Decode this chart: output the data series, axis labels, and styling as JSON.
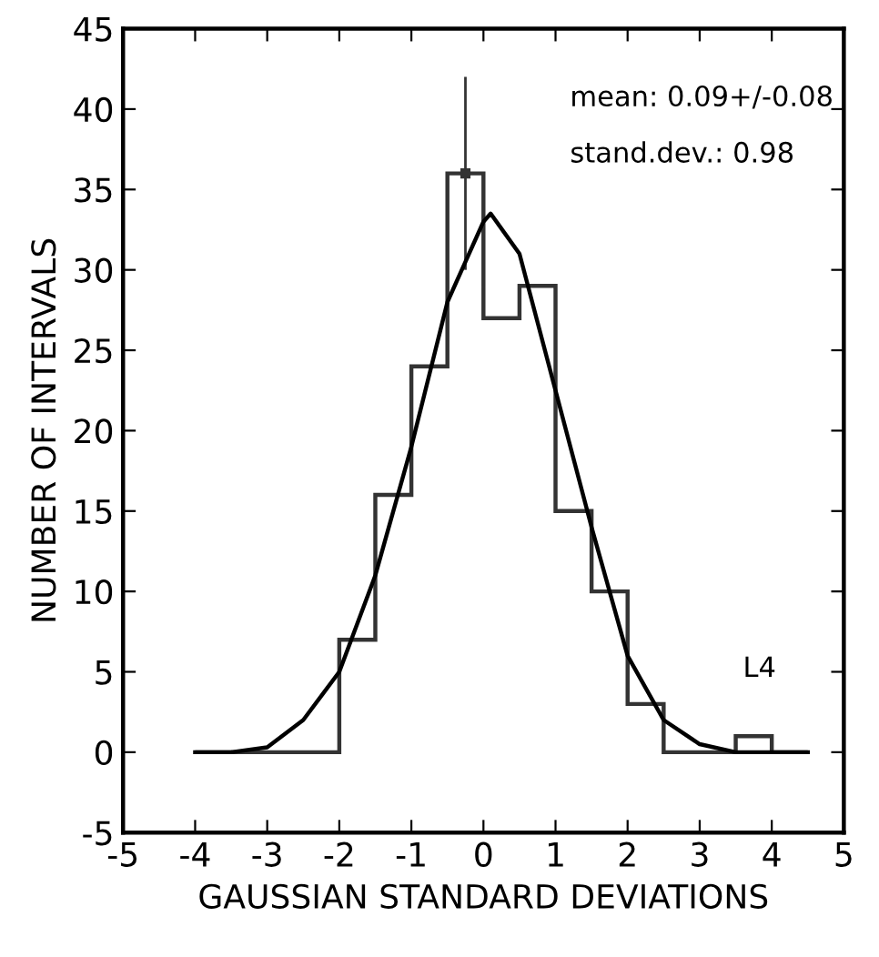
{
  "chart_data": {
    "type": "histogram",
    "xlabel": "GAUSSIAN STANDARD DEVIATIONS",
    "ylabel": "NUMBER OF INTERVALS",
    "bins": [
      -4,
      -3.5,
      -3,
      -2.5,
      -2,
      -1.5,
      -1,
      -0.5,
      0,
      0.5,
      1,
      1.5,
      2,
      2.5,
      3,
      3.5,
      4,
      4.5
    ],
    "values": [
      0,
      0,
      0,
      0,
      7,
      16,
      24,
      36,
      27,
      29,
      15,
      10,
      3,
      0,
      0,
      1,
      0
    ],
    "color": "#333333",
    "series": [
      {
        "type": "scatter",
        "color": "#333333",
        "x": [
          -0.25
        ],
        "values": [
          36
        ],
        "errors": [
          6
        ],
        "marker": "square"
      },
      {
        "type": "line",
        "color": "#000000",
        "x": [
          -4,
          -3.5,
          -3,
          -2.5,
          -2,
          -1.5,
          -1,
          -0.5,
          0,
          0.1,
          0.5,
          1,
          1.5,
          2,
          2.5,
          3,
          3.5,
          4,
          4.5
        ],
        "values": [
          0,
          0,
          0.3,
          2,
          5,
          11,
          19,
          28,
          33,
          33.5,
          31,
          22.5,
          14,
          6,
          2,
          0.5,
          0,
          0,
          0
        ]
      }
    ],
    "xlim": [
      -5,
      5
    ],
    "ylim": [
      -5,
      45
    ],
    "xticks": [
      -5,
      -4,
      -3,
      -2,
      -1,
      0,
      1,
      2,
      3,
      4,
      5
    ],
    "yticks": [
      -5,
      0,
      5,
      10,
      15,
      20,
      25,
      30,
      35,
      40,
      45
    ],
    "annotations": [
      "mean: 0.09+/-0.08",
      "stand.dev.: 0.98",
      "L4"
    ],
    "grid": false,
    "legend": false
  }
}
